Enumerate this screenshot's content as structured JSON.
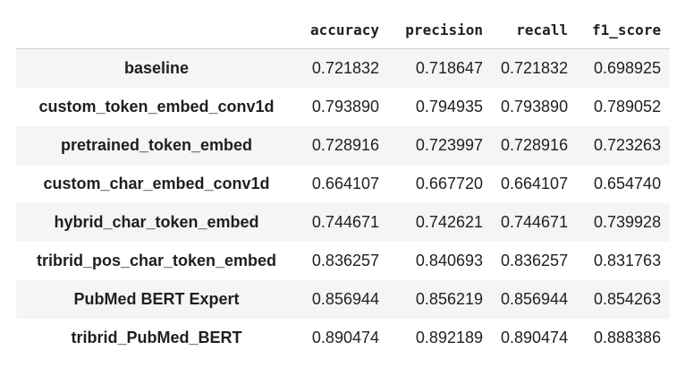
{
  "table": {
    "columns": [
      "accuracy",
      "precision",
      "recall",
      "f1_score"
    ],
    "rows": [
      {
        "name": "baseline",
        "values": [
          "0.721832",
          "0.718647",
          "0.721832",
          "0.698925"
        ]
      },
      {
        "name": "custom_token_embed_conv1d",
        "values": [
          "0.793890",
          "0.794935",
          "0.793890",
          "0.789052"
        ]
      },
      {
        "name": "pretrained_token_embed",
        "values": [
          "0.728916",
          "0.723997",
          "0.728916",
          "0.723263"
        ]
      },
      {
        "name": "custom_char_embed_conv1d",
        "values": [
          "0.664107",
          "0.667720",
          "0.664107",
          "0.654740"
        ]
      },
      {
        "name": "hybrid_char_token_embed",
        "values": [
          "0.744671",
          "0.742621",
          "0.744671",
          "0.739928"
        ]
      },
      {
        "name": "tribrid_pos_char_token_embed",
        "values": [
          "0.836257",
          "0.840693",
          "0.836257",
          "0.831763"
        ]
      },
      {
        "name": "PubMed BERT Expert",
        "values": [
          "0.856944",
          "0.856219",
          "0.856944",
          "0.854263"
        ]
      },
      {
        "name": "tribrid_PubMed_BERT",
        "values": [
          "0.890474",
          "0.892189",
          "0.890474",
          "0.888386"
        ]
      }
    ]
  }
}
